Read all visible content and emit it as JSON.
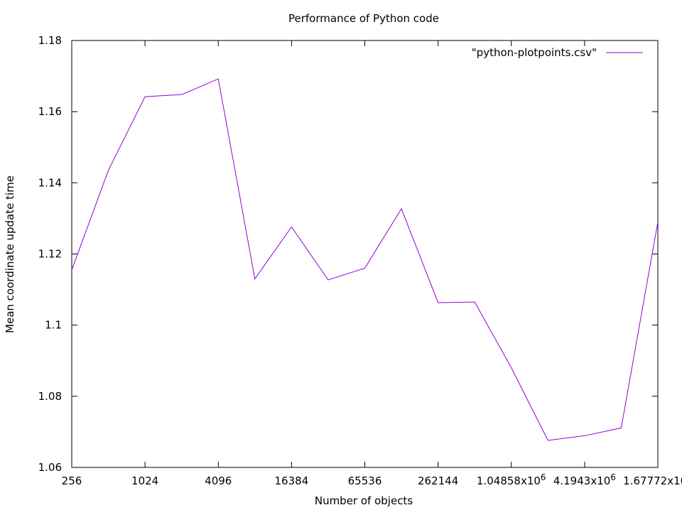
{
  "chart_data": {
    "type": "line",
    "title": "Performance of Python code",
    "xlabel": "Number of objects",
    "ylabel": "Mean coordinate update time",
    "x_scale": "log2",
    "xlim": [
      256,
      16777216
    ],
    "ylim": [
      1.06,
      1.18
    ],
    "x_ticks": [
      {
        "value": 256,
        "label": "256"
      },
      {
        "value": 1024,
        "label": "1024"
      },
      {
        "value": 4096,
        "label": "4096"
      },
      {
        "value": 16384,
        "label": "16384"
      },
      {
        "value": 65536,
        "label": "65536"
      },
      {
        "value": 262144,
        "label": "262144"
      },
      {
        "value": 1048576,
        "label": "1.04858x10"
      },
      {
        "value": 4194304,
        "label": "4.1943x10"
      },
      {
        "value": 16777216,
        "label": "1.67772x10"
      }
    ],
    "x_tick_superscript": "6",
    "y_ticks": [
      {
        "value": 1.06,
        "label": "1.06"
      },
      {
        "value": 1.08,
        "label": "1.08"
      },
      {
        "value": 1.1,
        "label": "1.1"
      },
      {
        "value": 1.12,
        "label": "1.12"
      },
      {
        "value": 1.14,
        "label": "1.14"
      },
      {
        "value": 1.16,
        "label": "1.16"
      },
      {
        "value": 1.18,
        "label": "1.18"
      }
    ],
    "grid": false,
    "legend_position": "top-right",
    "series": [
      {
        "name": "\"python-plotpoints.csv\"",
        "color": "#9400d3",
        "x": [
          256,
          512,
          1024,
          2048,
          4096,
          8192,
          16384,
          32768,
          65536,
          131072,
          262144,
          524288,
          1048576,
          2097152,
          4194304,
          8388608,
          16777216
        ],
        "y": [
          1.1155,
          1.1435,
          1.1642,
          1.1648,
          1.1692,
          1.113,
          1.1276,
          1.1127,
          1.116,
          1.1327,
          1.1063,
          1.1065,
          1.088,
          1.0676,
          1.0689,
          1.0711,
          1.129
        ]
      }
    ]
  }
}
